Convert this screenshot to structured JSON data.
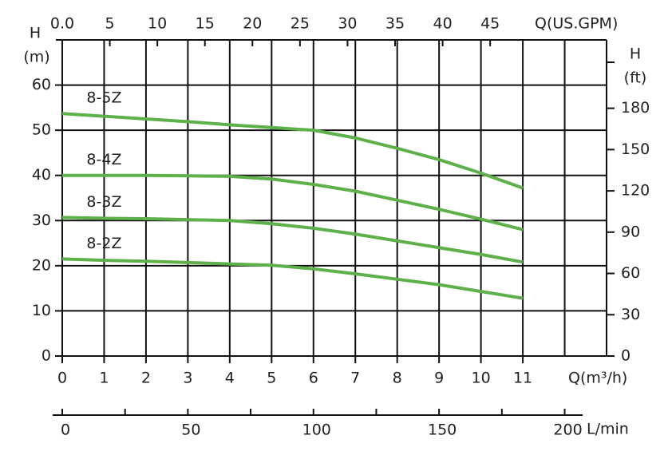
{
  "chart_data": {
    "type": "line",
    "x_label": "Q(m³/h)",
    "y_label": "H",
    "y_unit": "(m)",
    "y2_label": "H",
    "y2_unit": "(ft)",
    "top_axis_label": "Q(US.GPM)",
    "lmin_axis_label": "L/min",
    "x": [
      0,
      1,
      2,
      3,
      4,
      5,
      6,
      7,
      8,
      9,
      10,
      11
    ],
    "xlim": [
      0,
      13
    ],
    "xticks": [
      0,
      1,
      2,
      3,
      4,
      5,
      6,
      7,
      8,
      9,
      10,
      11
    ],
    "xgrid": [
      0,
      1,
      2,
      3,
      4,
      5,
      6,
      7,
      8,
      9,
      10,
      11,
      12,
      13
    ],
    "ylim": [
      0,
      70
    ],
    "yticks": [
      0,
      10,
      20,
      30,
      40,
      50,
      60
    ],
    "y2lim": [
      0,
      229.66
    ],
    "y2ticks": [
      0,
      30,
      60,
      90,
      120,
      150,
      180
    ],
    "top_xlim": [
      0,
      57.24
    ],
    "top_xticks": [
      {
        "value": 0,
        "label": "0.0"
      },
      5,
      10,
      15,
      20,
      25,
      30,
      35,
      40,
      45
    ],
    "lmin_xlim": [
      0,
      216.67
    ],
    "lmin_xticks": [
      0,
      50,
      100,
      150,
      200
    ],
    "lmin_minor_ticks": [
      25,
      75,
      125,
      175
    ],
    "grid": true,
    "series": [
      {
        "name": "8-5Z",
        "color": "#5db04a",
        "values": [
          53.7,
          53.1,
          52.5,
          51.9,
          51.2,
          50.6,
          50,
          48.3,
          46,
          43.5,
          40.5,
          37.2
        ]
      },
      {
        "name": "8-4Z",
        "color": "#5db04a",
        "values": [
          40,
          40,
          40,
          39.9,
          39.8,
          39.2,
          38,
          36.5,
          34.5,
          32.5,
          30.3,
          28
        ]
      },
      {
        "name": "8-3Z",
        "color": "#5db04a",
        "values": [
          30.7,
          30.5,
          30.4,
          30.2,
          30,
          29.3,
          28.3,
          27,
          25.5,
          24,
          22.5,
          20.8
        ]
      },
      {
        "name": "8-2Z",
        "color": "#5db04a",
        "values": [
          21.5,
          21.2,
          21,
          20.7,
          20.4,
          20.1,
          19.3,
          18.2,
          17,
          15.8,
          14.3,
          12.8
        ]
      }
    ]
  }
}
